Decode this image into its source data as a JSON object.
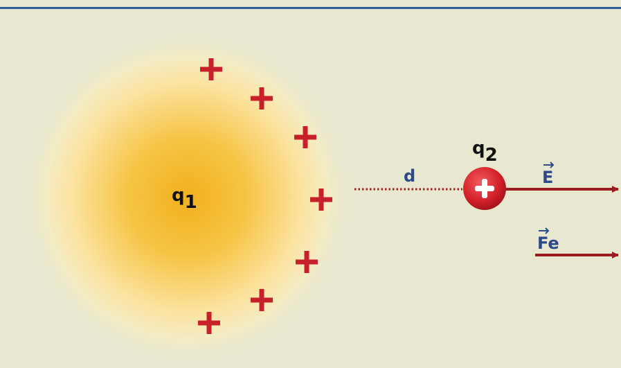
{
  "labels": {
    "q1": {
      "symbol": "q",
      "subscript": "1"
    },
    "q2": {
      "symbol": "q",
      "subscript": "2"
    },
    "distance": "d",
    "field": "E",
    "force": "Fe"
  }
}
